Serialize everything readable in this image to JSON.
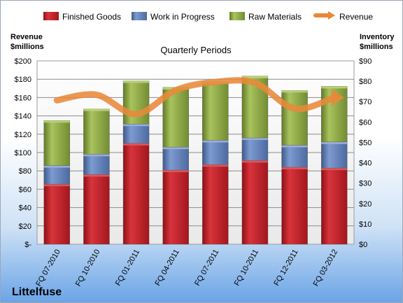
{
  "chart_data": {
    "type": "bar",
    "stacked": true,
    "title": "Quarterly Periods",
    "company": "Littelfuse",
    "ylabel_left": [
      "Revenue",
      "$millions"
    ],
    "ylabel_right": [
      "Inventory",
      "$millions"
    ],
    "categories": [
      "FQ 07-2010",
      "FQ 10-2010",
      "FQ 01-2011",
      "FQ 04-2011",
      "FQ 07-2011",
      "FQ 10-2011",
      "FQ 12-2011",
      "FQ 03-2012"
    ],
    "left_axis": {
      "min": 0,
      "max": 200,
      "step": 20,
      "ticks": [
        "$-",
        "$20",
        "$40",
        "$60",
        "$80",
        "$100",
        "$120",
        "$140",
        "$160",
        "$180",
        "$200"
      ]
    },
    "right_axis": {
      "min": 0,
      "max": 90,
      "step": 10,
      "ticks": [
        "$0",
        "$10",
        "$20",
        "$30",
        "$40",
        "$50",
        "$60",
        "$70",
        "$80",
        "$90"
      ]
    },
    "series": [
      {
        "name": "Finished Goods",
        "axis": "right",
        "color": "#c0202a",
        "values": [
          29.5,
          34.2,
          49.5,
          36.4,
          39.1,
          41.1,
          37.8,
          37.4
        ]
      },
      {
        "name": "Work in Progress",
        "axis": "right",
        "color": "#5f7fb8",
        "values": [
          9.1,
          10.0,
          9.5,
          11.3,
          11.9,
          11.1,
          10.8,
          12.8
        ]
      },
      {
        "name": "Raw Materials",
        "axis": "right",
        "color": "#8faa45",
        "values": [
          22.1,
          22.2,
          21.2,
          29.3,
          28.7,
          30.3,
          26.9,
          27.3
        ]
      },
      {
        "name": "Revenue",
        "axis": "left",
        "type": "line",
        "color": "#e8893a",
        "values": [
          157,
          163,
          142,
          168,
          177,
          176,
          148,
          160
        ]
      }
    ],
    "grid": true,
    "legend_position": "top"
  }
}
